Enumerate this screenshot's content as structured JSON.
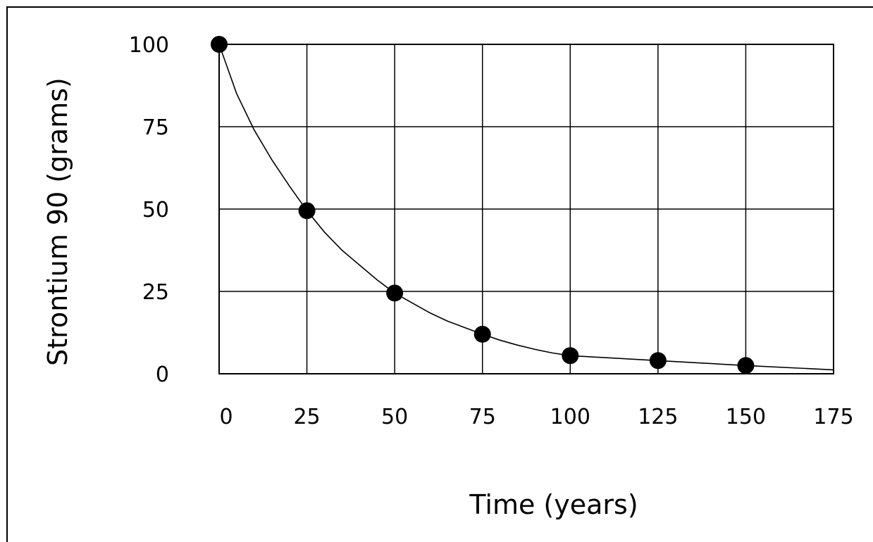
{
  "chart_data": {
    "type": "scatter",
    "title": "",
    "xlabel": "Time (years)",
    "ylabel": "Strontium 90 (grams)",
    "x_ticks": [
      "0",
      "25",
      "50",
      "75",
      "100",
      "125",
      "150",
      "175"
    ],
    "y_ticks": [
      "0",
      "25",
      "50",
      "75",
      "100"
    ],
    "xlim": [
      0,
      175
    ],
    "ylim": [
      0,
      100
    ],
    "grid": true,
    "points": [
      {
        "x": 0,
        "y": 100
      },
      {
        "x": 25,
        "y": 49.5
      },
      {
        "x": 50,
        "y": 24.5
      },
      {
        "x": 75,
        "y": 12
      },
      {
        "x": 100,
        "y": 5.5
      },
      {
        "x": 125,
        "y": 4
      },
      {
        "x": 150,
        "y": 2.5
      }
    ],
    "curve": [
      {
        "x": 0,
        "y": 100
      },
      {
        "x": 5,
        "y": 85
      },
      {
        "x": 10,
        "y": 74
      },
      {
        "x": 15,
        "y": 65
      },
      {
        "x": 20,
        "y": 57
      },
      {
        "x": 25,
        "y": 49.5
      },
      {
        "x": 30,
        "y": 43
      },
      {
        "x": 35,
        "y": 37.5
      },
      {
        "x": 40,
        "y": 33
      },
      {
        "x": 45,
        "y": 28.5
      },
      {
        "x": 50,
        "y": 24.5
      },
      {
        "x": 55,
        "y": 21.5
      },
      {
        "x": 60,
        "y": 18.5
      },
      {
        "x": 65,
        "y": 16
      },
      {
        "x": 70,
        "y": 14
      },
      {
        "x": 75,
        "y": 12
      },
      {
        "x": 80,
        "y": 10.2
      },
      {
        "x": 85,
        "y": 8.7
      },
      {
        "x": 90,
        "y": 7.4
      },
      {
        "x": 95,
        "y": 6.3
      },
      {
        "x": 100,
        "y": 5.5
      },
      {
        "x": 125,
        "y": 4
      },
      {
        "x": 150,
        "y": 2.5
      },
      {
        "x": 175,
        "y": 1.2
      }
    ]
  }
}
